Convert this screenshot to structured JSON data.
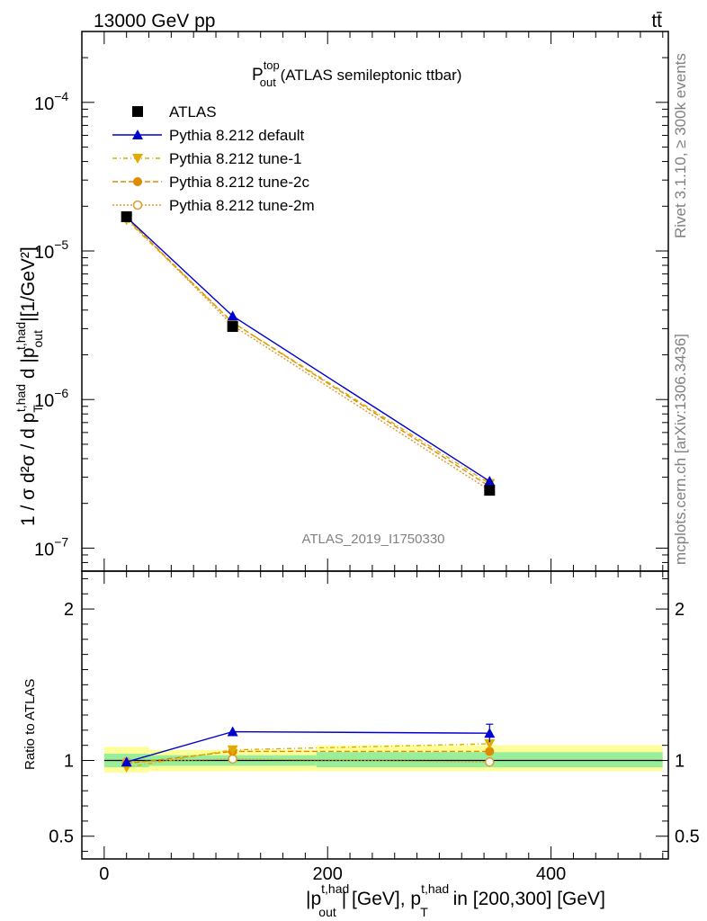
{
  "header": {
    "energy": "13000 GeV pp",
    "process": "tt̄"
  },
  "side": {
    "rivet": "Rivet 3.1.10, ≥ 300k events",
    "mcplots": "mcplots.cern.ch [arXiv:1306.3436]"
  },
  "chart_data": [
    {
      "type": "line",
      "panel": "main",
      "title": {
        "base": "P",
        "sup": "top",
        "sub": "out",
        "rest": " (ATLAS semileptonic ttbar)"
      },
      "ylabel": {
        "main": "1 / σ d²σ / d p",
        "T_sub": "T",
        "T_sup": "t,had",
        "mid": " d |p",
        "out_sub": "out",
        "out_sup": "t,had",
        "end": "|[1/GeV²]"
      },
      "yscale": "log",
      "ylim": [
        7e-08,
        0.0003
      ],
      "xlim": [
        -20,
        505
      ],
      "y_tick_labels": [
        {
          "value": 0.0001,
          "base": "10",
          "exp": "−4"
        },
        {
          "value": 1e-05,
          "base": "10",
          "exp": "−5"
        },
        {
          "value": 1e-06,
          "base": "10",
          "exp": "−6"
        },
        {
          "value": 1e-07,
          "base": "10",
          "exp": "−7"
        }
      ],
      "x": [
        20,
        115,
        345
      ],
      "bins": [
        [
          0,
          40
        ],
        [
          40,
          190
        ],
        [
          190,
          500
        ]
      ],
      "series": [
        {
          "name": "ATLAS",
          "style": "data",
          "values": [
            1.7e-05,
            3.1e-06,
            2.45e-07
          ]
        },
        {
          "name": "Pythia 8.212 default",
          "style": "default",
          "values": [
            1.69e-05,
            3.65e-06,
            2.82e-07
          ]
        },
        {
          "name": "Pythia 8.212 tune-1",
          "style": "tune1",
          "values": [
            1.62e-05,
            3.3e-06,
            2.72e-07
          ]
        },
        {
          "name": "Pythia 8.212 tune-2c",
          "style": "tune2c",
          "values": [
            1.66e-05,
            3.3e-06,
            2.6e-07
          ]
        },
        {
          "name": "Pythia 8.212 tune-2m",
          "style": "tune2m",
          "values": [
            1.68e-05,
            3.15e-06,
            2.45e-07
          ]
        }
      ],
      "watermark": "ATLAS_2019_I1750330",
      "legend_position": "top-left"
    },
    {
      "type": "line",
      "panel": "ratio",
      "ylabel": "Ratio to ATLAS",
      "ylim": [
        0.35,
        2.25
      ],
      "xlim": [
        -20,
        505
      ],
      "y_tick_labels": [
        {
          "value": 2,
          "label": "2"
        },
        {
          "value": 1,
          "label": "1"
        },
        {
          "value": 0.5,
          "label": "0.5"
        }
      ],
      "x_tick_labels": [
        {
          "value": 0,
          "label": "0"
        },
        {
          "value": 200,
          "label": "200"
        },
        {
          "value": 400,
          "label": "400"
        }
      ],
      "xlabel": {
        "p1": "|p",
        "sup1": "t,had",
        "sub1": "out",
        "p2": "| [GeV], p",
        "sup2": "t,had",
        "sub2": "T",
        "p3": " in [200,300] [GeV]"
      },
      "x": [
        20,
        115,
        345
      ],
      "bands": {
        "green": [
          [
            0.955,
            1.045
          ],
          [
            0.965,
            1.035
          ],
          [
            0.955,
            1.055
          ]
        ],
        "yellow": [
          [
            0.92,
            1.09
          ],
          [
            0.93,
            1.07
          ],
          [
            0.93,
            1.1
          ]
        ]
      },
      "series": [
        {
          "name": "Pythia 8.212 default",
          "style": "default",
          "values": [
            0.99,
            1.19,
            1.18
          ]
        },
        {
          "name": "Pythia 8.212 tune-1",
          "style": "tune1",
          "values": [
            0.955,
            1.07,
            1.11
          ]
        },
        {
          "name": "Pythia 8.212 tune-2c",
          "style": "tune2c",
          "values": [
            0.98,
            1.06,
            1.06
          ]
        },
        {
          "name": "Pythia 8.212 tune-2m",
          "style": "tune2m",
          "values": [
            0.99,
            1.01,
            0.99
          ]
        }
      ]
    }
  ]
}
